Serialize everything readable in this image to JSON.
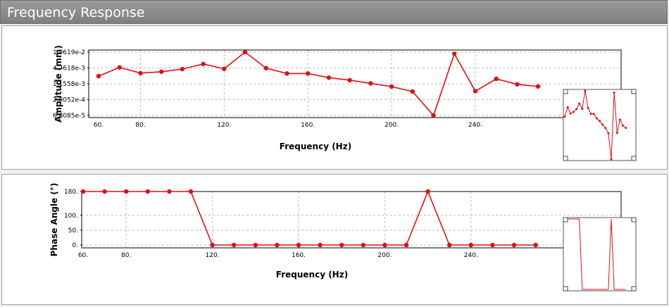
{
  "window": {
    "title": "Frequency Response"
  },
  "colors": {
    "series": "#dd1111",
    "frame": "#000000",
    "grid": "#bbbbbb",
    "background": "#ffffff",
    "titlebar": "#8a8a8a"
  },
  "chart_data": [
    {
      "type": "line",
      "scale": "log",
      "ylabel": "Amplitude (mm)",
      "xlabel": "Frequency (Hz)",
      "xlim": [
        60,
        310
      ],
      "ylim": [
        6.8085e-05,
        0.019619
      ],
      "x_ticks": [
        "60.",
        "80.",
        "120.",
        "160.",
        "200.",
        "240."
      ],
      "x_tick_values": [
        60,
        80,
        120,
        160,
        200,
        240
      ],
      "y_ticks": [
        "1.9619e-2",
        "4.7618e-3",
        "1.1558e-3",
        "2.8052e-4",
        "6.8085e-5"
      ],
      "y_tick_values": [
        0.019619,
        0.0047618,
        0.0011558,
        0.00028052,
        6.8085e-05
      ],
      "grid": true,
      "series": [
        {
          "x": [
            60,
            70,
            80,
            90,
            100,
            110,
            120,
            130,
            140,
            150,
            160,
            170,
            180,
            190,
            200,
            210,
            220,
            230,
            240,
            250,
            260,
            270
          ],
          "y": [
            0.0023,
            0.005,
            0.003,
            0.0034,
            0.0043,
            0.0068,
            0.0044,
            0.0196,
            0.0047,
            0.0029,
            0.0029,
            0.002,
            0.0016,
            0.0012,
            0.0009,
            0.00058,
            6.8085e-05,
            0.017,
            0.0006,
            0.0018,
            0.0011,
            0.00091
          ]
        }
      ]
    },
    {
      "type": "line",
      "ylabel": "Phase Angle (°)",
      "xlabel": "Frequency (Hz)",
      "xlim": [
        60,
        310
      ],
      "ylim": [
        0,
        180
      ],
      "x_ticks": [
        "60.",
        "80.",
        "120.",
        "160.",
        "200.",
        "240."
      ],
      "x_tick_values": [
        60,
        80,
        120,
        160,
        200,
        240
      ],
      "y_ticks": [
        "180.",
        "100.",
        "50.",
        "0."
      ],
      "y_tick_values": [
        180,
        100,
        50,
        0
      ],
      "grid": true,
      "series": [
        {
          "x": [
            60,
            70,
            80,
            90,
            100,
            110,
            120,
            130,
            140,
            150,
            160,
            170,
            180,
            190,
            200,
            210,
            220,
            230,
            240,
            250,
            260,
            270
          ],
          "y": [
            180,
            180,
            180,
            180,
            180,
            180,
            0,
            0,
            0,
            0,
            0,
            0,
            0,
            0,
            0,
            0,
            180,
            0,
            0,
            0,
            0,
            0
          ]
        }
      ]
    }
  ]
}
